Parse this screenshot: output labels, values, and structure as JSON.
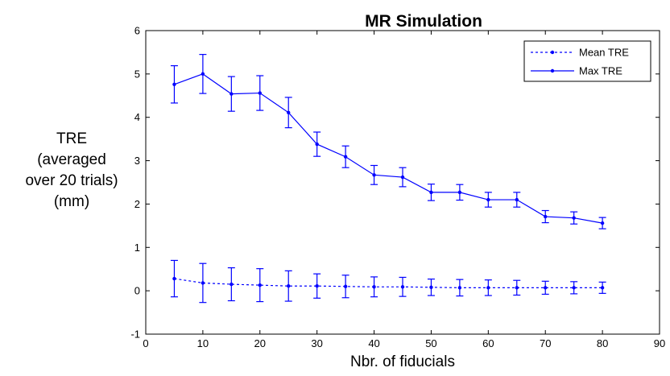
{
  "chart_data": {
    "type": "line",
    "title": "MR Simulation",
    "xlabel": "Nbr. of fiducials",
    "ylabel_lines": [
      "TRE",
      "(averaged",
      "over 20 trials)",
      "(mm)"
    ],
    "xlim": [
      0,
      90
    ],
    "ylim": [
      -1,
      6
    ],
    "xticks": [
      "0",
      "10",
      "20",
      "30",
      "40",
      "50",
      "60",
      "70",
      "80",
      "90"
    ],
    "yticks": [
      "-1",
      "0",
      "1",
      "2",
      "3",
      "4",
      "5",
      "6"
    ],
    "grid": false,
    "legend_position": "top-right",
    "x": [
      5,
      10,
      15,
      20,
      25,
      30,
      35,
      40,
      45,
      50,
      55,
      60,
      65,
      70,
      75,
      80
    ],
    "series": [
      {
        "name": "Mean TRE",
        "style": "dashed",
        "color": "#0000ff",
        "values": [
          0.28,
          0.18,
          0.15,
          0.13,
          0.11,
          0.11,
          0.1,
          0.09,
          0.09,
          0.08,
          0.07,
          0.07,
          0.07,
          0.07,
          0.07,
          0.07
        ],
        "errors": [
          0.42,
          0.45,
          0.38,
          0.38,
          0.35,
          0.28,
          0.26,
          0.23,
          0.22,
          0.19,
          0.19,
          0.18,
          0.17,
          0.15,
          0.14,
          0.13
        ]
      },
      {
        "name": "Max TRE",
        "style": "solid",
        "color": "#0000ff",
        "values": [
          4.76,
          5.0,
          4.54,
          4.56,
          4.11,
          3.38,
          3.09,
          2.67,
          2.62,
          2.27,
          2.27,
          2.1,
          2.1,
          1.71,
          1.68,
          1.56
        ],
        "errors": [
          0.43,
          0.45,
          0.4,
          0.4,
          0.35,
          0.28,
          0.25,
          0.22,
          0.22,
          0.19,
          0.18,
          0.17,
          0.17,
          0.14,
          0.14,
          0.13
        ]
      }
    ]
  }
}
